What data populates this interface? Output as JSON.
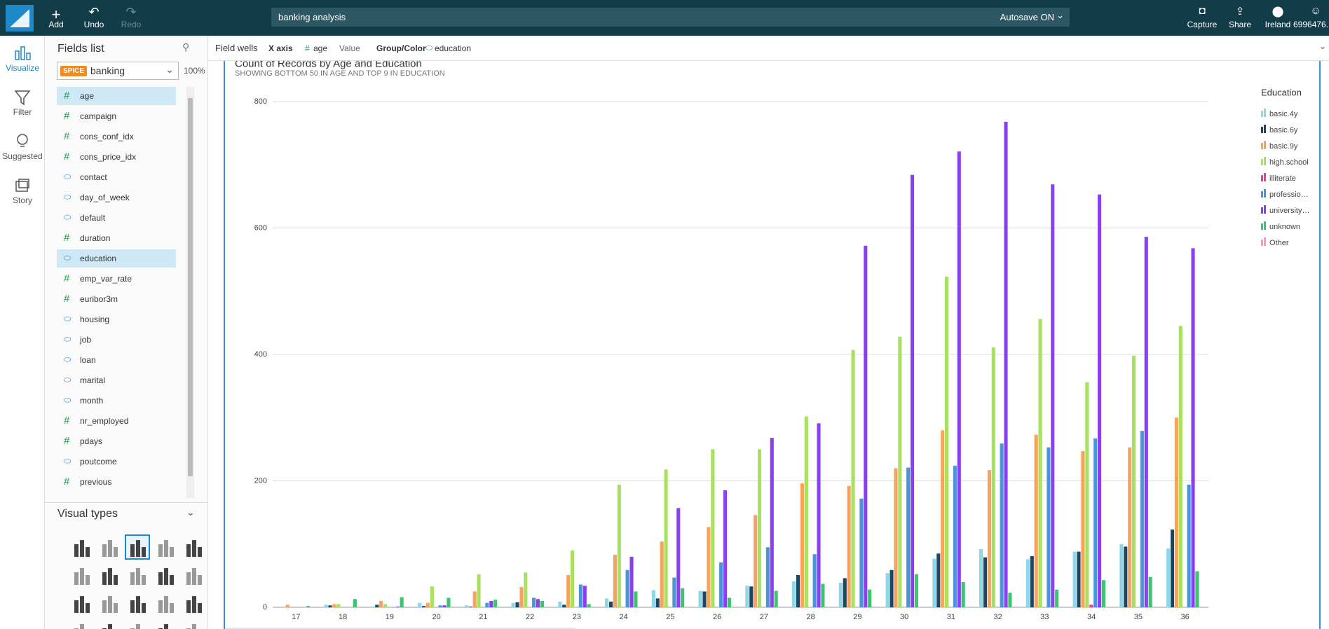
{
  "topbar": {
    "add": "Add",
    "undo": "Undo",
    "redo": "Redo",
    "search": "banking analysis",
    "autosave": "Autosave ON",
    "capture": "Capture",
    "share": "Share",
    "region": "Ireland",
    "account": "6996476."
  },
  "rail": {
    "visualize": "Visualize",
    "filter": "Filter",
    "suggested": "Suggested",
    "story": "Story"
  },
  "fields": {
    "title": "Fields list",
    "spice": "SPICE",
    "dataset": "banking",
    "zoom": "100%",
    "items": [
      {
        "name": "age",
        "numeric": true,
        "selected": true
      },
      {
        "name": "campaign",
        "numeric": true
      },
      {
        "name": "cons_conf_idx",
        "numeric": true
      },
      {
        "name": "cons_price_idx",
        "numeric": true
      },
      {
        "name": "contact",
        "numeric": false
      },
      {
        "name": "day_of_week",
        "numeric": false
      },
      {
        "name": "default",
        "numeric": false
      },
      {
        "name": "duration",
        "numeric": true
      },
      {
        "name": "education",
        "numeric": false,
        "selected": true
      },
      {
        "name": "emp_var_rate",
        "numeric": true
      },
      {
        "name": "euribor3m",
        "numeric": true
      },
      {
        "name": "housing",
        "numeric": false
      },
      {
        "name": "job",
        "numeric": false
      },
      {
        "name": "loan",
        "numeric": false
      },
      {
        "name": "marital",
        "numeric": false
      },
      {
        "name": "month",
        "numeric": false
      },
      {
        "name": "nr_employed",
        "numeric": true
      },
      {
        "name": "pdays",
        "numeric": true
      },
      {
        "name": "poutcome",
        "numeric": false
      },
      {
        "name": "previous",
        "numeric": true
      }
    ],
    "visual_types": "Visual types"
  },
  "wells": {
    "title": "Field wells",
    "x_label": "X axis",
    "x_field": "age",
    "value_label": "Value",
    "group_label": "Group/Color",
    "group_field": "education"
  },
  "chart_data": {
    "type": "bar",
    "title": "Count of Records by Age and Education",
    "subtitle": "SHOWING BOTTOM 50 IN AGE AND TOP 9 IN EDUCATION",
    "legend_title": "Education",
    "legend": "right",
    "grid": true,
    "categories": [
      "17",
      "18",
      "19",
      "20",
      "21",
      "22",
      "23",
      "24",
      "25",
      "26",
      "27",
      "28",
      "29",
      "30",
      "31",
      "32",
      "33",
      "34",
      "35",
      "36"
    ],
    "ylim": [
      0,
      800
    ],
    "yticks": [
      0,
      200,
      400,
      600,
      800
    ],
    "series": [
      {
        "name": "basic.4y",
        "color": "#8cd8ea",
        "values": [
          0,
          4,
          1,
          7,
          3,
          7,
          9,
          14,
          27,
          26,
          34,
          41,
          39,
          54,
          77,
          92,
          76,
          88,
          100,
          93
        ]
      },
      {
        "name": "basic.6y",
        "color": "#1d4660",
        "values": [
          0,
          3,
          4,
          2,
          1,
          8,
          4,
          9,
          14,
          25,
          33,
          51,
          46,
          59,
          85,
          79,
          81,
          88,
          96,
          123
        ]
      },
      {
        "name": "basic.9y",
        "color": "#f7a35c",
        "values": [
          4,
          5,
          10,
          7,
          25,
          32,
          51,
          83,
          104,
          127,
          146,
          196,
          192,
          220,
          280,
          217,
          273,
          247,
          253,
          300
        ]
      },
      {
        "name": "high.school",
        "color": "#a8e05f",
        "values": [
          0,
          5,
          5,
          33,
          52,
          55,
          90,
          194,
          218,
          250,
          250,
          302,
          407,
          428,
          523,
          411,
          456,
          356,
          398,
          445
        ]
      },
      {
        "name": "illiterate",
        "color": "#e8409e",
        "values": [
          0,
          0,
          0,
          0,
          0,
          0,
          0,
          0,
          0,
          0,
          0,
          0,
          0,
          0,
          0,
          0,
          0,
          4,
          0,
          0
        ]
      },
      {
        "name": "professio…",
        "color": "#4a94dc",
        "values": [
          0,
          0,
          0,
          3,
          7,
          15,
          36,
          59,
          47,
          71,
          95,
          84,
          172,
          221,
          224,
          259,
          253,
          267,
          279,
          194
        ]
      },
      {
        "name": "university…",
        "color": "#8a3ff0",
        "values": [
          0,
          0,
          1,
          3,
          10,
          13,
          34,
          80,
          157,
          185,
          268,
          291,
          572,
          684,
          721,
          768,
          669,
          653,
          586,
          568
        ]
      },
      {
        "name": "unknown",
        "color": "#3cc46e",
        "values": [
          2,
          13,
          16,
          15,
          12,
          10,
          5,
          25,
          30,
          15,
          26,
          37,
          28,
          52,
          40,
          23,
          28,
          43,
          48,
          57
        ]
      },
      {
        "name": "Other",
        "color": "#f59ac8",
        "values": [
          0,
          0,
          0,
          0,
          0,
          0,
          0,
          0,
          0,
          0,
          0,
          0,
          0,
          0,
          0,
          0,
          0,
          0,
          0,
          0
        ]
      }
    ]
  }
}
